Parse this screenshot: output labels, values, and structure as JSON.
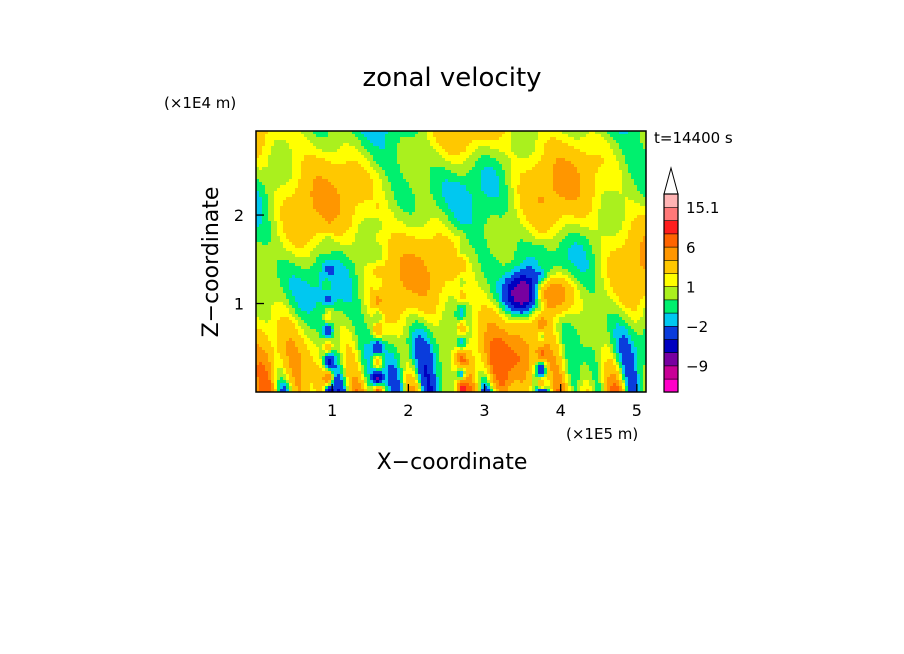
{
  "chart_data": {
    "type": "heatmap",
    "title": "zonal velocity",
    "xlabel": "X−coordinate",
    "ylabel": "Z−coordinate",
    "x_unit": "(×1E5 m)",
    "y_unit": "(×1E4 m)",
    "time_label": "t=14400 s",
    "xlim": [
      0,
      5.12
    ],
    "ylim": [
      0,
      2.95
    ],
    "x_ticks": [
      {
        "value": 1,
        "label": "1"
      },
      {
        "value": 2,
        "label": "2"
      },
      {
        "value": 3,
        "label": "3"
      },
      {
        "value": 4,
        "label": "4"
      },
      {
        "value": 5,
        "label": "5"
      }
    ],
    "y_ticks": [
      {
        "value": 1,
        "label": "1"
      },
      {
        "value": 2,
        "label": "2"
      }
    ],
    "colorbar": {
      "levels": [
        -15,
        -12,
        -9,
        -6,
        -4,
        -2,
        -1,
        0,
        1,
        2,
        4,
        6,
        9,
        12,
        15.1
      ],
      "colors": [
        "#ff00c8",
        "#c80096",
        "#7800a0",
        "#0000c0",
        "#0a3cdc",
        "#00c8f0",
        "#00f06e",
        "#aaf01e",
        "#ffff00",
        "#ffc800",
        "#ff9600",
        "#ff6400",
        "#ff1e1e",
        "#ff7878",
        "#ffb4b4"
      ],
      "over_color": "#ffffff",
      "labels": [
        {
          "value": -9,
          "label": "−9"
        },
        {
          "value": -2,
          "label": "−2"
        },
        {
          "value": 1,
          "label": "1"
        },
        {
          "value": 6,
          "label": "6"
        },
        {
          "value": 15.1,
          "label": "15.1"
        }
      ]
    },
    "grid": false,
    "legend": "colorbar right"
  }
}
